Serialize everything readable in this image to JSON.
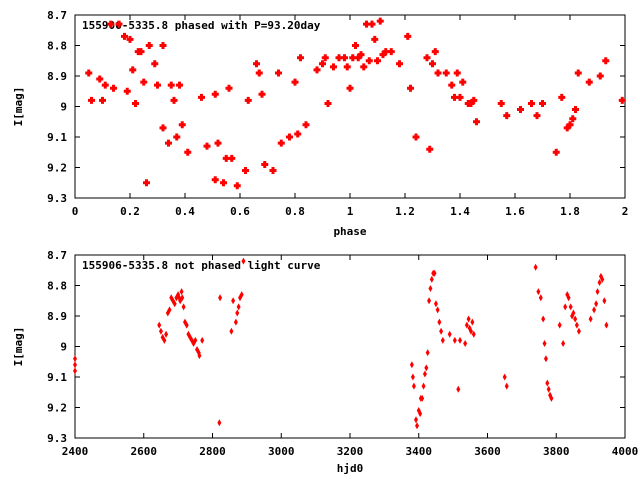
{
  "chart_data": [
    {
      "type": "scatter",
      "title": "155906-5335.8 phased with P=93.20day",
      "xlabel": "phase",
      "ylabel": "I[mag]",
      "xlim": [
        0,
        2
      ],
      "ylim": [
        8.7,
        9.3
      ],
      "y_inverted": true,
      "grid": false,
      "marker": "filled square-plus",
      "color": "#ff0000",
      "xticks": [
        0,
        0.2,
        0.4,
        0.6,
        0.8,
        1,
        1.2,
        1.4,
        1.6,
        1.8,
        2
      ],
      "xtick_labels": [
        "0",
        "0.2",
        "0.4",
        "0.6",
        "0.8",
        "1",
        "1.2",
        "1.4",
        "1.6",
        "1.8",
        "2"
      ],
      "yticks": [
        8.7,
        8.8,
        8.9,
        9,
        9.1,
        9.2,
        9.3
      ],
      "ytick_labels": [
        "8.7",
        "8.8",
        "8.9",
        "9",
        "9.1",
        "9.2",
        "9.3"
      ],
      "points": [
        [
          0.05,
          8.89
        ],
        [
          0.06,
          8.98
        ],
        [
          0.09,
          8.91
        ],
        [
          0.1,
          8.98
        ],
        [
          0.11,
          8.93
        ],
        [
          0.13,
          8.73
        ],
        [
          0.14,
          8.94
        ],
        [
          0.16,
          8.73
        ],
        [
          0.18,
          8.77
        ],
        [
          0.19,
          8.95
        ],
        [
          0.2,
          8.78
        ],
        [
          0.21,
          8.88
        ],
        [
          0.22,
          8.99
        ],
        [
          0.23,
          8.82
        ],
        [
          0.24,
          8.82
        ],
        [
          0.25,
          8.92
        ],
        [
          0.26,
          9.25
        ],
        [
          0.27,
          8.8
        ],
        [
          0.29,
          8.86
        ],
        [
          0.3,
          8.93
        ],
        [
          0.32,
          8.8
        ],
        [
          0.32,
          9.07
        ],
        [
          0.34,
          9.12
        ],
        [
          0.35,
          8.93
        ],
        [
          0.36,
          8.98
        ],
        [
          0.37,
          9.1
        ],
        [
          0.38,
          8.93
        ],
        [
          0.39,
          9.06
        ],
        [
          0.41,
          9.15
        ],
        [
          0.46,
          8.97
        ],
        [
          0.48,
          9.13
        ],
        [
          0.51,
          8.96
        ],
        [
          0.51,
          9.24
        ],
        [
          0.52,
          9.12
        ],
        [
          0.54,
          9.25
        ],
        [
          0.55,
          9.17
        ],
        [
          0.56,
          8.94
        ],
        [
          0.57,
          9.17
        ],
        [
          0.59,
          9.26
        ],
        [
          0.62,
          9.21
        ],
        [
          0.63,
          8.98
        ],
        [
          0.66,
          8.86
        ],
        [
          0.67,
          8.89
        ],
        [
          0.68,
          8.96
        ],
        [
          0.69,
          9.19
        ],
        [
          0.72,
          9.21
        ],
        [
          0.74,
          8.89
        ],
        [
          0.75,
          9.12
        ],
        [
          0.78,
          9.1
        ],
        [
          0.8,
          8.92
        ],
        [
          0.81,
          9.09
        ],
        [
          0.82,
          8.84
        ],
        [
          0.84,
          9.06
        ],
        [
          0.88,
          8.88
        ],
        [
          0.9,
          8.86
        ],
        [
          0.91,
          8.84
        ],
        [
          0.92,
          8.99
        ],
        [
          0.94,
          8.87
        ],
        [
          0.96,
          8.84
        ],
        [
          0.98,
          8.84
        ],
        [
          0.99,
          8.87
        ],
        [
          1.0,
          8.94
        ],
        [
          1.01,
          8.84
        ],
        [
          1.02,
          8.8
        ],
        [
          1.03,
          8.84
        ],
        [
          1.04,
          8.83
        ],
        [
          1.05,
          8.87
        ],
        [
          1.06,
          8.73
        ],
        [
          1.07,
          8.85
        ],
        [
          1.08,
          8.73
        ],
        [
          1.09,
          8.78
        ],
        [
          1.1,
          8.85
        ],
        [
          1.11,
          8.72
        ],
        [
          1.12,
          8.83
        ],
        [
          1.13,
          8.82
        ],
        [
          1.15,
          8.82
        ],
        [
          1.18,
          8.86
        ],
        [
          1.21,
          8.77
        ],
        [
          1.22,
          8.94
        ],
        [
          1.24,
          9.1
        ],
        [
          1.28,
          8.84
        ],
        [
          1.29,
          9.14
        ],
        [
          1.3,
          8.86
        ],
        [
          1.31,
          8.82
        ],
        [
          1.32,
          8.89
        ],
        [
          1.35,
          8.89
        ],
        [
          1.37,
          8.93
        ],
        [
          1.38,
          8.97
        ],
        [
          1.39,
          8.89
        ],
        [
          1.4,
          8.97
        ],
        [
          1.41,
          8.92
        ],
        [
          1.43,
          8.99
        ],
        [
          1.44,
          8.99
        ],
        [
          1.45,
          8.98
        ],
        [
          1.46,
          9.05
        ],
        [
          1.55,
          8.99
        ],
        [
          1.57,
          9.03
        ],
        [
          1.62,
          9.01
        ],
        [
          1.66,
          8.99
        ],
        [
          1.68,
          9.03
        ],
        [
          1.7,
          8.99
        ],
        [
          1.75,
          9.15
        ],
        [
          1.77,
          8.97
        ],
        [
          1.79,
          9.07
        ],
        [
          1.8,
          9.06
        ],
        [
          1.81,
          9.04
        ],
        [
          1.82,
          9.01
        ],
        [
          1.83,
          8.89
        ],
        [
          1.87,
          8.92
        ],
        [
          1.91,
          8.9
        ],
        [
          1.93,
          8.85
        ],
        [
          1.99,
          8.98
        ]
      ]
    },
    {
      "type": "scatter",
      "title": "155906-5335.8 not phased light curve",
      "xlabel": "hjd0",
      "ylabel": "I[mag]",
      "xlim": [
        2400,
        4000
      ],
      "ylim": [
        8.7,
        9.3
      ],
      "y_inverted": true,
      "grid": false,
      "marker": "diamond",
      "color": "#ff0000",
      "xticks": [
        2400,
        2600,
        2800,
        3000,
        3200,
        3400,
        3600,
        3800,
        4000
      ],
      "xtick_labels": [
        "2400",
        "2600",
        "2800",
        "3000",
        "3200",
        "3400",
        "3600",
        "3800",
        "4000"
      ],
      "yticks": [
        8.7,
        8.8,
        8.9,
        9,
        9.1,
        9.2,
        9.3
      ],
      "ytick_labels": [
        "8.7",
        "8.8",
        "8.9",
        "9",
        "9.1",
        "9.2",
        "9.3"
      ],
      "points": [
        [
          2400,
          9.04
        ],
        [
          2400,
          9.06
        ],
        [
          2400,
          9.08
        ],
        [
          2645,
          8.93
        ],
        [
          2650,
          8.95
        ],
        [
          2655,
          8.97
        ],
        [
          2660,
          8.98
        ],
        [
          2665,
          8.96
        ],
        [
          2670,
          8.89
        ],
        [
          2675,
          8.88
        ],
        [
          2680,
          8.84
        ],
        [
          2685,
          8.85
        ],
        [
          2690,
          8.86
        ],
        [
          2695,
          8.84
        ],
        [
          2700,
          8.83
        ],
        [
          2703,
          8.84
        ],
        [
          2706,
          8.85
        ],
        [
          2710,
          8.82
        ],
        [
          2712,
          8.84
        ],
        [
          2716,
          8.87
        ],
        [
          2720,
          8.92
        ],
        [
          2725,
          8.93
        ],
        [
          2730,
          8.96
        ],
        [
          2735,
          8.97
        ],
        [
          2740,
          8.98
        ],
        [
          2745,
          8.99
        ],
        [
          2750,
          8.98
        ],
        [
          2755,
          9.01
        ],
        [
          2760,
          9.02
        ],
        [
          2762,
          9.03
        ],
        [
          2770,
          8.98
        ],
        [
          2820,
          9.25
        ],
        [
          2822,
          8.84
        ],
        [
          2855,
          8.95
        ],
        [
          2860,
          8.85
        ],
        [
          2868,
          8.92
        ],
        [
          2872,
          8.89
        ],
        [
          2876,
          8.87
        ],
        [
          2880,
          8.84
        ],
        [
          2885,
          8.83
        ],
        [
          2890,
          8.72
        ],
        [
          3380,
          9.06
        ],
        [
          3383,
          9.1
        ],
        [
          3386,
          9.13
        ],
        [
          3392,
          9.24
        ],
        [
          3395,
          9.26
        ],
        [
          3400,
          9.21
        ],
        [
          3404,
          9.22
        ],
        [
          3406,
          9.17
        ],
        [
          3410,
          9.17
        ],
        [
          3414,
          9.13
        ],
        [
          3418,
          9.09
        ],
        [
          3422,
          9.07
        ],
        [
          3426,
          9.02
        ],
        [
          3430,
          8.85
        ],
        [
          3434,
          8.81
        ],
        [
          3438,
          8.78
        ],
        [
          3442,
          8.76
        ],
        [
          3446,
          8.76
        ],
        [
          3450,
          8.86
        ],
        [
          3455,
          8.88
        ],
        [
          3460,
          8.92
        ],
        [
          3465,
          8.95
        ],
        [
          3470,
          8.98
        ],
        [
          3490,
          8.96
        ],
        [
          3505,
          8.98
        ],
        [
          3515,
          9.14
        ],
        [
          3520,
          8.98
        ],
        [
          3535,
          8.99
        ],
        [
          3540,
          8.93
        ],
        [
          3545,
          8.91
        ],
        [
          3548,
          8.94
        ],
        [
          3552,
          8.95
        ],
        [
          3556,
          8.92
        ],
        [
          3560,
          8.96
        ],
        [
          3650,
          9.1
        ],
        [
          3656,
          9.13
        ],
        [
          3740,
          8.74
        ],
        [
          3748,
          8.82
        ],
        [
          3755,
          8.84
        ],
        [
          3762,
          8.91
        ],
        [
          3766,
          8.99
        ],
        [
          3770,
          9.04
        ],
        [
          3774,
          9.12
        ],
        [
          3778,
          9.14
        ],
        [
          3782,
          9.16
        ],
        [
          3786,
          9.17
        ],
        [
          3810,
          8.93
        ],
        [
          3820,
          8.99
        ],
        [
          3826,
          8.87
        ],
        [
          3832,
          8.83
        ],
        [
          3836,
          8.84
        ],
        [
          3842,
          8.87
        ],
        [
          3846,
          8.9
        ],
        [
          3850,
          8.89
        ],
        [
          3855,
          8.91
        ],
        [
          3860,
          8.93
        ],
        [
          3866,
          8.95
        ],
        [
          3900,
          8.91
        ],
        [
          3910,
          8.88
        ],
        [
          3916,
          8.86
        ],
        [
          3920,
          8.82
        ],
        [
          3926,
          8.79
        ],
        [
          3930,
          8.77
        ],
        [
          3934,
          8.78
        ],
        [
          3940,
          8.85
        ],
        [
          3946,
          8.93
        ]
      ]
    }
  ]
}
